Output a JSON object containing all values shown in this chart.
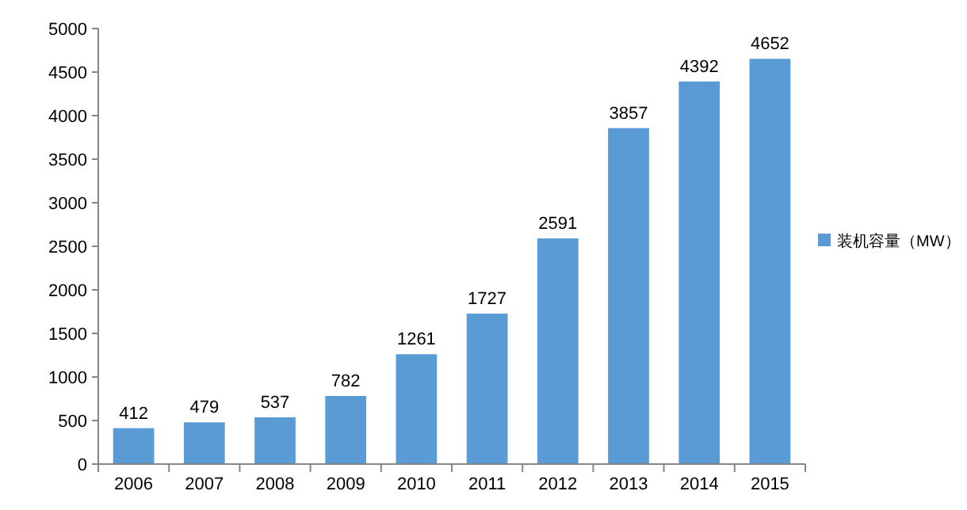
{
  "chart_data": {
    "type": "bar",
    "categories": [
      "2006",
      "2007",
      "2008",
      "2009",
      "2010",
      "2011",
      "2012",
      "2013",
      "2014",
      "2015"
    ],
    "series": [
      {
        "name": "装机容量（MW）",
        "color": "#5b9bd5",
        "values": [
          412,
          479,
          537,
          782,
          1261,
          1727,
          2591,
          3857,
          4392,
          4652
        ]
      }
    ],
    "ylim": [
      0,
      5000
    ],
    "yticks": [
      0,
      500,
      1000,
      1500,
      2000,
      2500,
      3000,
      3500,
      4000,
      4500,
      5000
    ],
    "data_labels": true,
    "legend": "right",
    "grid": false
  }
}
